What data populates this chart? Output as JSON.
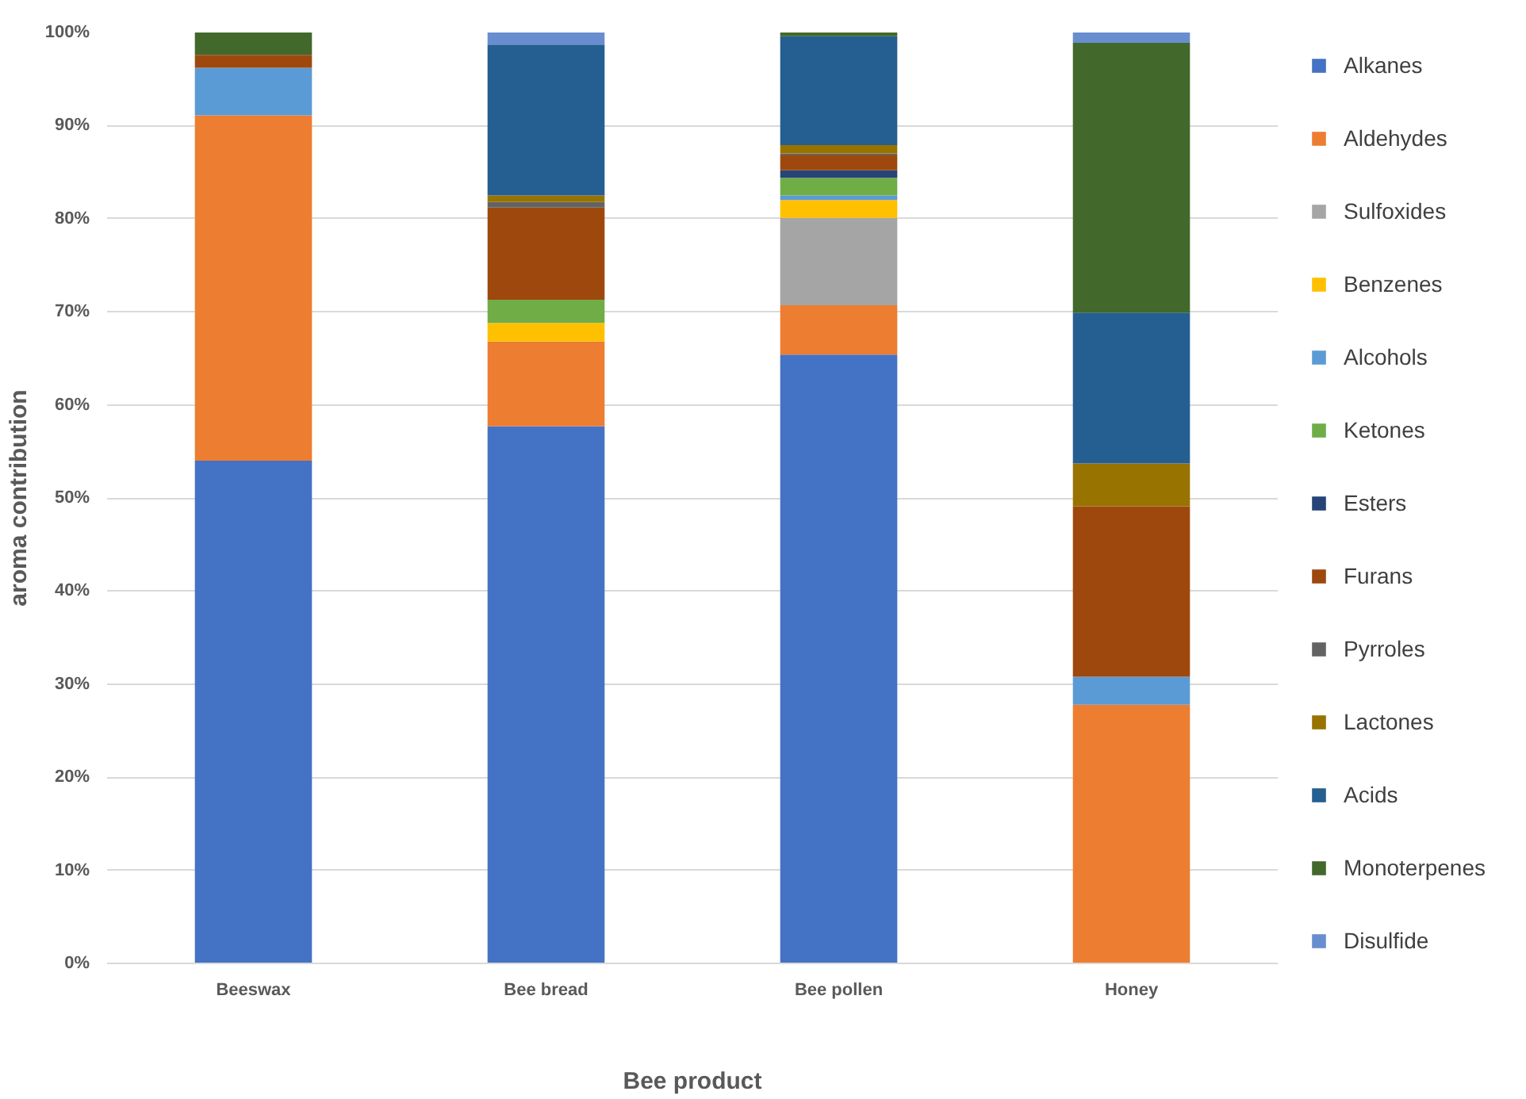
{
  "chart_data": {
    "type": "bar",
    "stacked": true,
    "xlabel": "Bee product",
    "ylabel": "aroma contribution",
    "categories": [
      "Beeswax",
      "Bee bread",
      "Bee pollen",
      "Honey"
    ],
    "ylim": [
      0,
      100
    ],
    "yticks": [
      {
        "value": 0,
        "label": "0%"
      },
      {
        "value": 10,
        "label": "10%"
      },
      {
        "value": 20,
        "label": "20%"
      },
      {
        "value": 30,
        "label": "30%"
      },
      {
        "value": 40,
        "label": "40%"
      },
      {
        "value": 50,
        "label": "50%"
      },
      {
        "value": 60,
        "label": "60%"
      },
      {
        "value": 70,
        "label": "70%"
      },
      {
        "value": 80,
        "label": "80%"
      },
      {
        "value": 90,
        "label": "90%"
      },
      {
        "value": 100,
        "label": "100%"
      }
    ],
    "grid": "y",
    "legend": "right",
    "series": [
      {
        "name": "Alkanes",
        "color": "#4472c4",
        "values": [
          54.0,
          57.7,
          65.4,
          0
        ]
      },
      {
        "name": "Aldehydes",
        "color": "#ed7d31",
        "values": [
          37.1,
          9.1,
          5.3,
          27.8
        ]
      },
      {
        "name": "Sulfoxides",
        "color": "#a5a5a5",
        "values": [
          0,
          0,
          9.4,
          0
        ]
      },
      {
        "name": "Benzenes",
        "color": "#ffc000",
        "values": [
          0,
          2.0,
          1.9,
          0
        ]
      },
      {
        "name": "Alcohols",
        "color": "#5b9bd5",
        "values": [
          5.1,
          0,
          0.5,
          3.0
        ]
      },
      {
        "name": "Ketones",
        "color": "#70ad47",
        "values": [
          0,
          2.5,
          1.9,
          0
        ]
      },
      {
        "name": "Esters",
        "color": "#264478",
        "values": [
          0,
          0,
          0.8,
          0
        ]
      },
      {
        "name": "Furans",
        "color": "#9e480e",
        "values": [
          1.4,
          9.9,
          1.6,
          18.3
        ]
      },
      {
        "name": "Pyrroles",
        "color": "#636363",
        "values": [
          0,
          0.6,
          0.2,
          0
        ]
      },
      {
        "name": "Lactones",
        "color": "#997300",
        "values": [
          0,
          0.7,
          0.9,
          4.6
        ]
      },
      {
        "name": "Acids",
        "color": "#255e91",
        "values": [
          0,
          16.2,
          11.7,
          16.2
        ]
      },
      {
        "name": "Monoterpenes",
        "color": "#43682b",
        "values": [
          2.4,
          0,
          0.4,
          29.0
        ]
      },
      {
        "name": "Disulfide",
        "color": "#698ed0",
        "values": [
          0,
          1.3,
          0,
          1.1
        ]
      }
    ]
  }
}
